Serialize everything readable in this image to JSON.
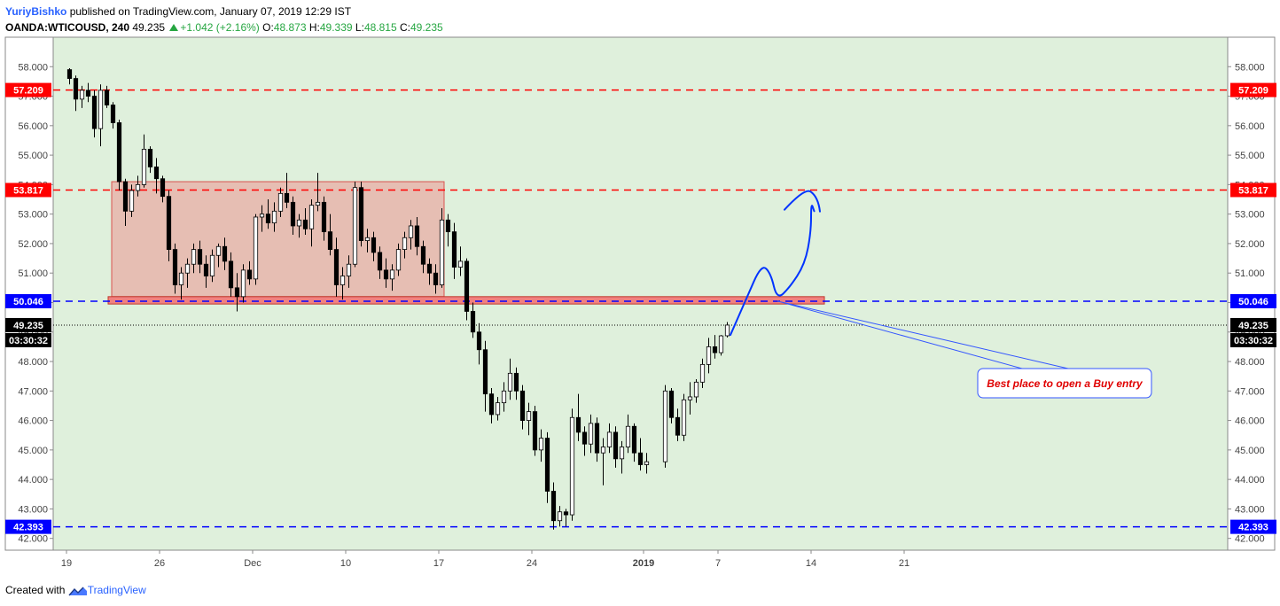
{
  "header": {
    "author": "YuriyBishko",
    "published": "published on TradingView.com, January 07, 2019 12:29 IST",
    "symbol": "OANDA:WTICOUSD, 240",
    "last": "49.235",
    "change": "+1.042 (+2.16%)",
    "o_label": "O:",
    "open": "48.873",
    "h_label": "H:",
    "high": "49.339",
    "l_label": "L:",
    "low": "48.815",
    "c_label": "C:",
    "close": "49.235"
  },
  "footer": {
    "created_with": "Created with",
    "brand": "TradingView"
  },
  "chart_data": {
    "type": "candlestick",
    "symbol": "OANDA:WTICOUSD",
    "timeframe": "240",
    "ylim": [
      41.6,
      59.0
    ],
    "y_ticks": [
      42,
      43,
      44,
      45,
      46,
      47,
      48,
      49,
      50,
      51,
      52,
      53,
      54,
      55,
      56,
      57,
      58
    ],
    "y_tick_labels": [
      "42.000",
      "43.000",
      "44.000",
      "45.000",
      "46.000",
      "47.000",
      "48.000",
      "49.000",
      "50.000",
      "51.000",
      "52.000",
      "53.000",
      "54.000",
      "55.000",
      "56.000",
      "57.000",
      "58.000"
    ],
    "x_ticks": [
      {
        "label": "19",
        "date": "2018-11-19"
      },
      {
        "label": "26",
        "date": "2018-11-26"
      },
      {
        "label": "Dec",
        "date": "2018-12-03"
      },
      {
        "label": "10",
        "date": "2018-12-10"
      },
      {
        "label": "17",
        "date": "2018-12-17"
      },
      {
        "label": "24",
        "date": "2018-12-24"
      },
      {
        "label": "2019",
        "date": "2019-01-01"
      },
      {
        "label": "7",
        "date": "2019-01-07"
      },
      {
        "label": "14",
        "date": "2019-01-14"
      },
      {
        "label": "21",
        "date": "2019-01-21"
      }
    ],
    "horizontal_levels": [
      {
        "value": 57.209,
        "label": "57.209",
        "color": "#ff0000",
        "style": "dashed"
      },
      {
        "value": 53.817,
        "label": "53.817",
        "color": "#ff0000",
        "style": "dashed"
      },
      {
        "value": 50.046,
        "label": "50.046",
        "color": "#0000ff",
        "style": "dashed"
      },
      {
        "value": 42.393,
        "label": "42.393",
        "color": "#0000ff",
        "style": "dashed"
      }
    ],
    "last_price": {
      "value": 49.235,
      "label": "49.235",
      "countdown": "03:30:32",
      "color": "#000000"
    },
    "range_box": {
      "start": "2018-11-20",
      "end": "2018-12-17",
      "top": 54.1,
      "bottom": 50.2,
      "color": "#f08080"
    },
    "support_zone": {
      "start": "2018-11-26",
      "end": "2019-01-11",
      "top": 50.2,
      "bottom": 49.95
    },
    "annotation": {
      "text": "Best place to open a Buy entry",
      "color": "#e00000"
    },
    "projection": {
      "color": "#0033ff",
      "points": [
        {
          "date": "2019-01-07T16:00",
          "y": 48.9
        },
        {
          "date": "2019-01-08T12:00",
          "y": 50.1
        },
        {
          "date": "2019-01-09T08:00",
          "y": 51.3
        },
        {
          "date": "2019-01-09T20:00",
          "y": 51.0
        },
        {
          "date": "2019-01-10T04:00",
          "y": 50.1
        },
        {
          "date": "2019-01-10T20:00",
          "y": 50.5
        },
        {
          "date": "2019-01-11T16:00",
          "y": 51.3
        },
        {
          "date": "2019-01-12T16:00",
          "y": 52.4
        },
        {
          "date": "2019-01-13T16:00",
          "y": 53.4
        },
        {
          "date": "2019-01-14T04:00",
          "y": 53.1
        }
      ]
    },
    "colors": {
      "background": "#dff0dc",
      "up": "#ffffff",
      "down": "#000000",
      "border": "#000000"
    },
    "ohlc": [
      [
        "2018-11-19T00:00",
        57.9,
        57.95,
        57.4,
        57.6
      ],
      [
        "2018-11-19T08:00",
        57.6,
        57.7,
        56.5,
        56.9
      ],
      [
        "2018-11-19T16:00",
        56.9,
        57.35,
        56.6,
        57.2
      ],
      [
        "2018-11-20T00:00",
        57.2,
        57.45,
        56.8,
        57.0
      ],
      [
        "2018-11-20T08:00",
        57.0,
        57.2,
        55.6,
        55.9
      ],
      [
        "2018-11-20T16:00",
        55.9,
        57.4,
        55.3,
        57.2
      ],
      [
        "2018-11-21T00:00",
        57.2,
        57.35,
        56.6,
        56.7
      ],
      [
        "2018-11-21T08:00",
        56.7,
        56.8,
        55.9,
        56.1
      ],
      [
        "2018-11-21T16:00",
        56.1,
        56.2,
        53.8,
        54.1
      ],
      [
        "2018-11-22T00:00",
        54.1,
        54.2,
        52.6,
        53.1
      ],
      [
        "2018-11-22T08:00",
        53.1,
        54.0,
        52.9,
        53.8
      ],
      [
        "2018-11-22T16:00",
        53.8,
        54.3,
        53.6,
        54.0
      ],
      [
        "2018-11-23T00:00",
        54.0,
        55.7,
        53.9,
        55.2
      ],
      [
        "2018-11-23T08:00",
        55.2,
        55.3,
        54.4,
        54.6
      ],
      [
        "2018-11-23T16:00",
        54.6,
        54.9,
        53.7,
        54.2
      ],
      [
        "2018-11-26T00:00",
        54.2,
        54.3,
        53.4,
        53.6
      ],
      [
        "2018-11-26T08:00",
        53.6,
        53.8,
        51.4,
        51.8
      ],
      [
        "2018-11-26T16:00",
        51.8,
        52.0,
        50.3,
        50.6
      ],
      [
        "2018-11-27T00:00",
        50.6,
        51.2,
        50.1,
        51.0
      ],
      [
        "2018-11-27T08:00",
        51.0,
        51.5,
        50.5,
        51.3
      ],
      [
        "2018-11-27T16:00",
        51.3,
        52.0,
        51.0,
        51.8
      ],
      [
        "2018-11-28T00:00",
        51.8,
        52.1,
        51.0,
        51.3
      ],
      [
        "2018-11-28T08:00",
        51.3,
        51.6,
        50.5,
        50.9
      ],
      [
        "2018-11-28T16:00",
        50.9,
        51.8,
        50.7,
        51.6
      ],
      [
        "2018-11-29T00:00",
        51.6,
        52.0,
        51.2,
        51.9
      ],
      [
        "2018-11-29T08:00",
        51.9,
        52.2,
        51.1,
        51.4
      ],
      [
        "2018-11-29T16:00",
        51.4,
        51.7,
        50.2,
        50.5
      ],
      [
        "2018-11-30T00:00",
        50.5,
        51.0,
        49.7,
        50.2
      ],
      [
        "2018-11-30T08:00",
        50.2,
        51.3,
        50.0,
        51.1
      ],
      [
        "2018-11-30T16:00",
        51.1,
        51.4,
        50.6,
        50.8
      ],
      [
        "2018-12-03T00:00",
        50.8,
        53.0,
        50.6,
        52.9
      ],
      [
        "2018-12-03T08:00",
        52.9,
        53.3,
        52.4,
        53.0
      ],
      [
        "2018-12-03T16:00",
        53.0,
        53.5,
        52.5,
        52.7
      ],
      [
        "2018-12-04T00:00",
        52.7,
        53.4,
        52.4,
        53.1
      ],
      [
        "2018-12-04T08:00",
        53.1,
        53.9,
        52.9,
        53.7
      ],
      [
        "2018-12-04T16:00",
        53.7,
        54.4,
        53.2,
        53.4
      ],
      [
        "2018-12-05T00:00",
        53.4,
        53.6,
        52.3,
        52.6
      ],
      [
        "2018-12-05T08:00",
        52.6,
        53.0,
        52.2,
        52.8
      ],
      [
        "2018-12-05T16:00",
        52.8,
        53.2,
        52.3,
        52.5
      ],
      [
        "2018-12-06T00:00",
        52.5,
        53.5,
        51.9,
        53.3
      ],
      [
        "2018-12-06T08:00",
        53.3,
        54.4,
        53.1,
        53.4
      ],
      [
        "2018-12-06T16:00",
        53.4,
        53.6,
        52.1,
        52.4
      ],
      [
        "2018-12-07T00:00",
        52.4,
        53.0,
        51.6,
        51.8
      ],
      [
        "2018-12-07T08:00",
        51.8,
        52.2,
        50.2,
        50.6
      ],
      [
        "2018-12-07T16:00",
        50.6,
        51.2,
        50.1,
        50.9
      ],
      [
        "2018-12-10T00:00",
        50.9,
        51.6,
        50.5,
        51.3
      ],
      [
        "2018-12-10T08:00",
        51.3,
        54.1,
        51.2,
        53.9
      ],
      [
        "2018-12-10T16:00",
        53.9,
        54.1,
        51.9,
        52.1
      ],
      [
        "2018-12-11T00:00",
        52.1,
        52.5,
        51.7,
        52.2
      ],
      [
        "2018-12-11T08:00",
        52.2,
        52.4,
        51.4,
        51.7
      ],
      [
        "2018-12-11T16:00",
        51.7,
        51.9,
        50.8,
        51.1
      ],
      [
        "2018-12-12T00:00",
        51.1,
        51.5,
        50.5,
        50.8
      ],
      [
        "2018-12-12T08:00",
        50.8,
        51.3,
        50.4,
        51.1
      ],
      [
        "2018-12-12T16:00",
        51.1,
        52.0,
        50.9,
        51.8
      ],
      [
        "2018-12-13T00:00",
        51.8,
        52.4,
        51.5,
        52.2
      ],
      [
        "2018-12-13T08:00",
        52.2,
        52.8,
        51.8,
        52.6
      ],
      [
        "2018-12-13T16:00",
        52.6,
        52.9,
        51.6,
        51.9
      ],
      [
        "2018-12-14T00:00",
        51.9,
        52.1,
        51.0,
        51.3
      ],
      [
        "2018-12-14T08:00",
        51.3,
        51.5,
        50.6,
        51.0
      ],
      [
        "2018-12-14T16:00",
        51.0,
        51.3,
        50.3,
        50.6
      ],
      [
        "2018-12-17T00:00",
        50.6,
        53.2,
        50.5,
        52.8
      ],
      [
        "2018-12-17T08:00",
        52.8,
        53.0,
        51.9,
        52.4
      ],
      [
        "2018-12-17T16:00",
        52.4,
        52.7,
        50.8,
        51.2
      ],
      [
        "2018-12-18T00:00",
        51.2,
        51.9,
        50.9,
        51.4
      ],
      [
        "2018-12-18T08:00",
        51.4,
        51.5,
        49.4,
        49.7
      ],
      [
        "2018-12-18T16:00",
        49.7,
        50.0,
        48.8,
        49.0
      ],
      [
        "2018-12-19T00:00",
        49.0,
        49.3,
        47.9,
        48.4
      ],
      [
        "2018-12-19T08:00",
        48.4,
        48.7,
        46.3,
        46.9
      ],
      [
        "2018-12-19T16:00",
        46.9,
        47.1,
        45.9,
        46.2
      ],
      [
        "2018-12-20T00:00",
        46.2,
        46.8,
        46.0,
        46.6
      ],
      [
        "2018-12-20T08:00",
        46.6,
        47.3,
        46.3,
        47.0
      ],
      [
        "2018-12-20T16:00",
        47.0,
        48.1,
        46.7,
        47.6
      ],
      [
        "2018-12-21T00:00",
        47.6,
        47.8,
        46.7,
        47.0
      ],
      [
        "2018-12-21T08:00",
        47.0,
        47.2,
        45.7,
        46.0
      ],
      [
        "2018-12-21T16:00",
        46.0,
        46.6,
        45.5,
        46.3
      ],
      [
        "2018-12-24T00:00",
        46.3,
        46.5,
        44.8,
        45.0
      ],
      [
        "2018-12-24T08:00",
        45.0,
        45.7,
        44.6,
        45.4
      ],
      [
        "2018-12-24T16:00",
        45.4,
        45.6,
        43.2,
        43.6
      ],
      [
        "2018-12-25T00:00",
        43.6,
        43.9,
        42.3,
        42.6
      ],
      [
        "2018-12-25T08:00",
        42.6,
        43.1,
        42.4,
        42.9
      ],
      [
        "2018-12-25T16:00",
        42.9,
        43.0,
        42.4,
        42.8
      ],
      [
        "2018-12-26T00:00",
        42.8,
        46.4,
        42.6,
        46.1
      ],
      [
        "2018-12-26T08:00",
        46.1,
        46.9,
        45.3,
        45.6
      ],
      [
        "2018-12-26T16:00",
        45.6,
        45.8,
        44.8,
        45.2
      ],
      [
        "2018-12-27T00:00",
        45.2,
        46.2,
        44.9,
        45.9
      ],
      [
        "2018-12-27T08:00",
        45.9,
        46.1,
        44.6,
        44.9
      ],
      [
        "2018-12-27T16:00",
        44.9,
        45.4,
        43.8,
        45.1
      ],
      [
        "2018-12-28T00:00",
        45.1,
        45.9,
        44.9,
        45.6
      ],
      [
        "2018-12-28T08:00",
        45.6,
        45.8,
        44.4,
        44.7
      ],
      [
        "2018-12-28T16:00",
        44.7,
        45.3,
        44.2,
        45.1
      ],
      [
        "2018-12-31T00:00",
        45.1,
        46.2,
        44.9,
        45.8
      ],
      [
        "2018-12-31T08:00",
        45.8,
        45.9,
        44.6,
        44.9
      ],
      [
        "2018-12-31T16:00",
        44.9,
        45.4,
        44.3,
        44.5
      ],
      [
        "2019-01-01T00:00",
        44.5,
        44.9,
        44.2,
        44.6
      ],
      [
        "2019-01-02T00:00",
        44.6,
        47.2,
        44.4,
        47.0
      ],
      [
        "2019-01-02T08:00",
        47.0,
        47.1,
        45.9,
        46.1
      ],
      [
        "2019-01-02T16:00",
        46.1,
        46.4,
        45.3,
        45.5
      ],
      [
        "2019-01-03T00:00",
        45.5,
        46.9,
        45.3,
        46.7
      ],
      [
        "2019-01-03T08:00",
        46.7,
        47.3,
        46.2,
        46.8
      ],
      [
        "2019-01-03T16:00",
        46.8,
        47.4,
        46.6,
        47.3
      ],
      [
        "2019-01-04T00:00",
        47.3,
        48.1,
        47.1,
        47.9
      ],
      [
        "2019-01-04T08:00",
        47.9,
        48.8,
        47.6,
        48.5
      ],
      [
        "2019-01-04T16:00",
        48.5,
        48.9,
        48.1,
        48.3
      ],
      [
        "2019-01-07T00:00",
        48.3,
        48.9,
        48.2,
        48.87
      ],
      [
        "2019-01-07T08:00",
        48.873,
        49.339,
        48.815,
        49.235
      ]
    ]
  }
}
